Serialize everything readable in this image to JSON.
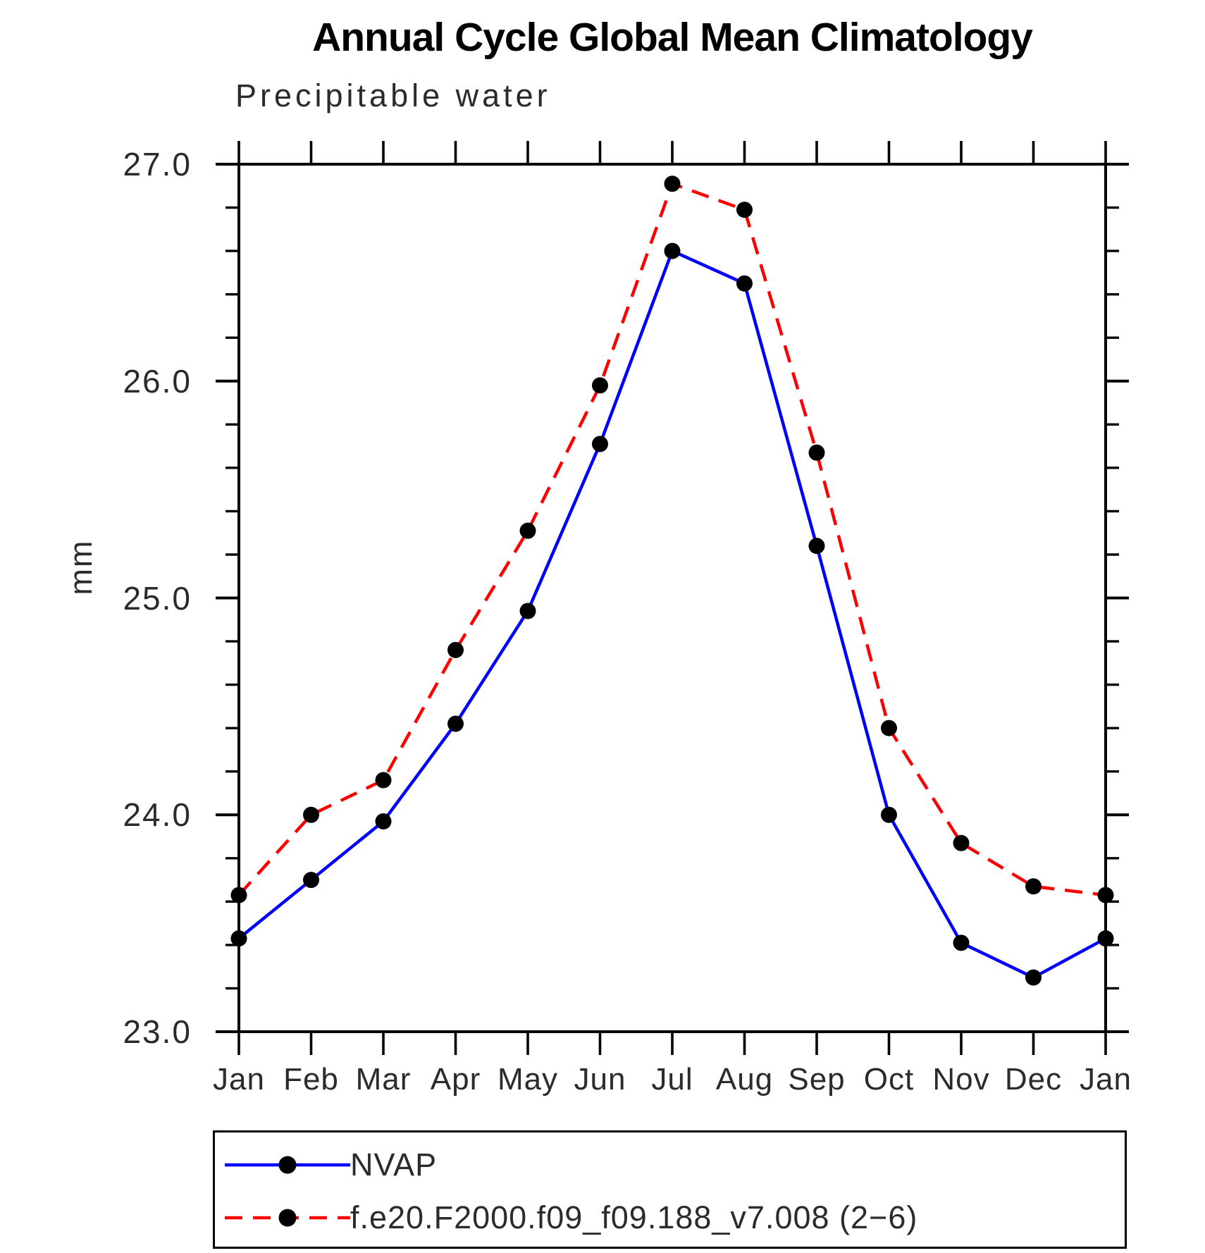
{
  "chart_data": {
    "type": "line",
    "title": "Annual Cycle Global Mean Climatology",
    "subtitle": "Precipitable water",
    "ylabel": "mm",
    "xlabel": "",
    "categories": [
      "Jan",
      "Feb",
      "Mar",
      "Apr",
      "May",
      "Jun",
      "Jul",
      "Aug",
      "Sep",
      "Oct",
      "Nov",
      "Dec",
      "Jan"
    ],
    "ylim": [
      23.0,
      27.0
    ],
    "ytick_major": [
      23.0,
      24.0,
      25.0,
      26.0,
      27.0
    ],
    "ytick_labels": [
      "23.0",
      "24.0",
      "25.0",
      "26.0",
      "27.0"
    ],
    "ytick_minor_step": 0.2,
    "grid": false,
    "legend_position": "below-plot",
    "frame_color": "#000000",
    "marker_color": "#000000",
    "series": [
      {
        "name": "NVAP",
        "color": "#0000ff",
        "style": "solid",
        "marker": "filled-circle",
        "values": [
          23.43,
          23.7,
          23.97,
          24.42,
          24.94,
          25.71,
          26.6,
          26.45,
          25.24,
          24.0,
          23.41,
          23.25,
          23.43
        ]
      },
      {
        "name": "f.e20.F2000.f09_f09.188_v7.008 (2−6)",
        "color": "#ff0000",
        "style": "dashed",
        "marker": "filled-circle",
        "values": [
          23.63,
          24.0,
          24.16,
          24.76,
          25.31,
          25.98,
          26.91,
          26.79,
          25.67,
          24.4,
          23.87,
          23.67,
          23.63
        ]
      }
    ]
  }
}
